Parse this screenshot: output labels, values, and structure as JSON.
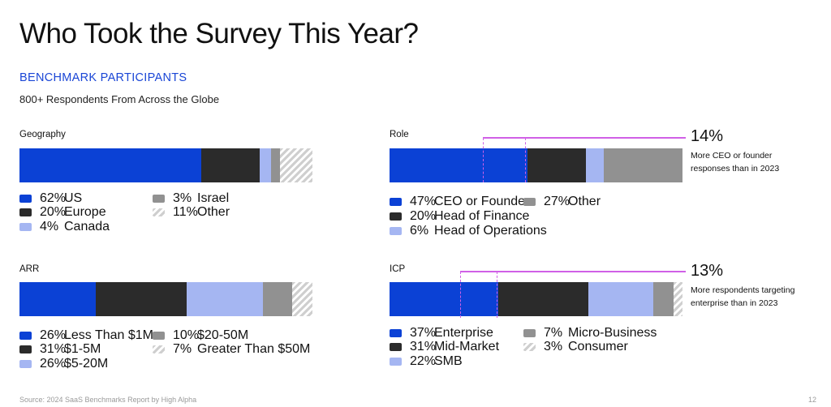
{
  "page": {
    "title": "Who Took the Survey This Year?",
    "section_label": "BENCHMARK PARTICIPANTS",
    "subtitle": "800+ Respondents From Across the Globe",
    "source": "Source: 2024 SaaS Benchmarks Report by High Alpha",
    "page_number": "12"
  },
  "colors": {
    "blue": "#0b41d5",
    "black": "#2b2b2b",
    "light_blue": "#a5b6f2",
    "gray": "#919191",
    "accent_text": "#1a46d6",
    "callout_line": "#d060e6"
  },
  "callouts": {
    "role": {
      "value": "14%",
      "text": "More CEO or founder responses than in 2023"
    },
    "icp": {
      "value": "13%",
      "text": "More respondents targeting enterprise than in 2023"
    }
  },
  "chart_data": [
    {
      "type": "bar",
      "stacked": true,
      "orientation": "horizontal",
      "title": "Geography",
      "series": [
        {
          "name": "US",
          "value": 62,
          "label": "62%",
          "color": "blue"
        },
        {
          "name": "Europe",
          "value": 20,
          "label": "20%",
          "color": "black"
        },
        {
          "name": "Canada",
          "value": 4,
          "label": "4%",
          "color": "light_blue"
        },
        {
          "name": "Israel",
          "value": 3,
          "label": "3%",
          "color": "gray"
        },
        {
          "name": "Other",
          "value": 11,
          "label": "11%",
          "color": "hatch"
        }
      ]
    },
    {
      "type": "bar",
      "stacked": true,
      "orientation": "horizontal",
      "title": "Role",
      "series": [
        {
          "name": "CEO or Founder",
          "value": 47,
          "label": "47%",
          "color": "blue"
        },
        {
          "name": "Head of Finance",
          "value": 20,
          "label": "20%",
          "color": "black"
        },
        {
          "name": "Head of Operations",
          "value": 6,
          "label": "6%",
          "color": "light_blue"
        },
        {
          "name": "Other",
          "value": 27,
          "label": "27%",
          "color": "gray"
        }
      ]
    },
    {
      "type": "bar",
      "stacked": true,
      "orientation": "horizontal",
      "title": "ARR",
      "series": [
        {
          "name": "Less Than $1M",
          "value": 26,
          "label": "26%",
          "color": "blue"
        },
        {
          "name": "$1-5M",
          "value": 31,
          "label": "31%",
          "color": "black"
        },
        {
          "name": "$5-20M",
          "value": 26,
          "label": "26%",
          "color": "light_blue"
        },
        {
          "name": "$20-50M",
          "value": 10,
          "label": "10%",
          "color": "gray"
        },
        {
          "name": "Greater Than $50M",
          "value": 7,
          "label": "7%",
          "color": "hatch"
        }
      ]
    },
    {
      "type": "bar",
      "stacked": true,
      "orientation": "horizontal",
      "title": "ICP",
      "series": [
        {
          "name": "Enterprise",
          "value": 37,
          "label": "37%",
          "color": "blue"
        },
        {
          "name": "Mid-Market",
          "value": 31,
          "label": "31%",
          "color": "black"
        },
        {
          "name": "SMB",
          "value": 22,
          "label": "22%",
          "color": "light_blue"
        },
        {
          "name": "Micro-Business",
          "value": 7,
          "label": "7%",
          "color": "gray"
        },
        {
          "name": "Consumer",
          "value": 3,
          "label": "3%",
          "color": "hatch"
        }
      ]
    }
  ]
}
